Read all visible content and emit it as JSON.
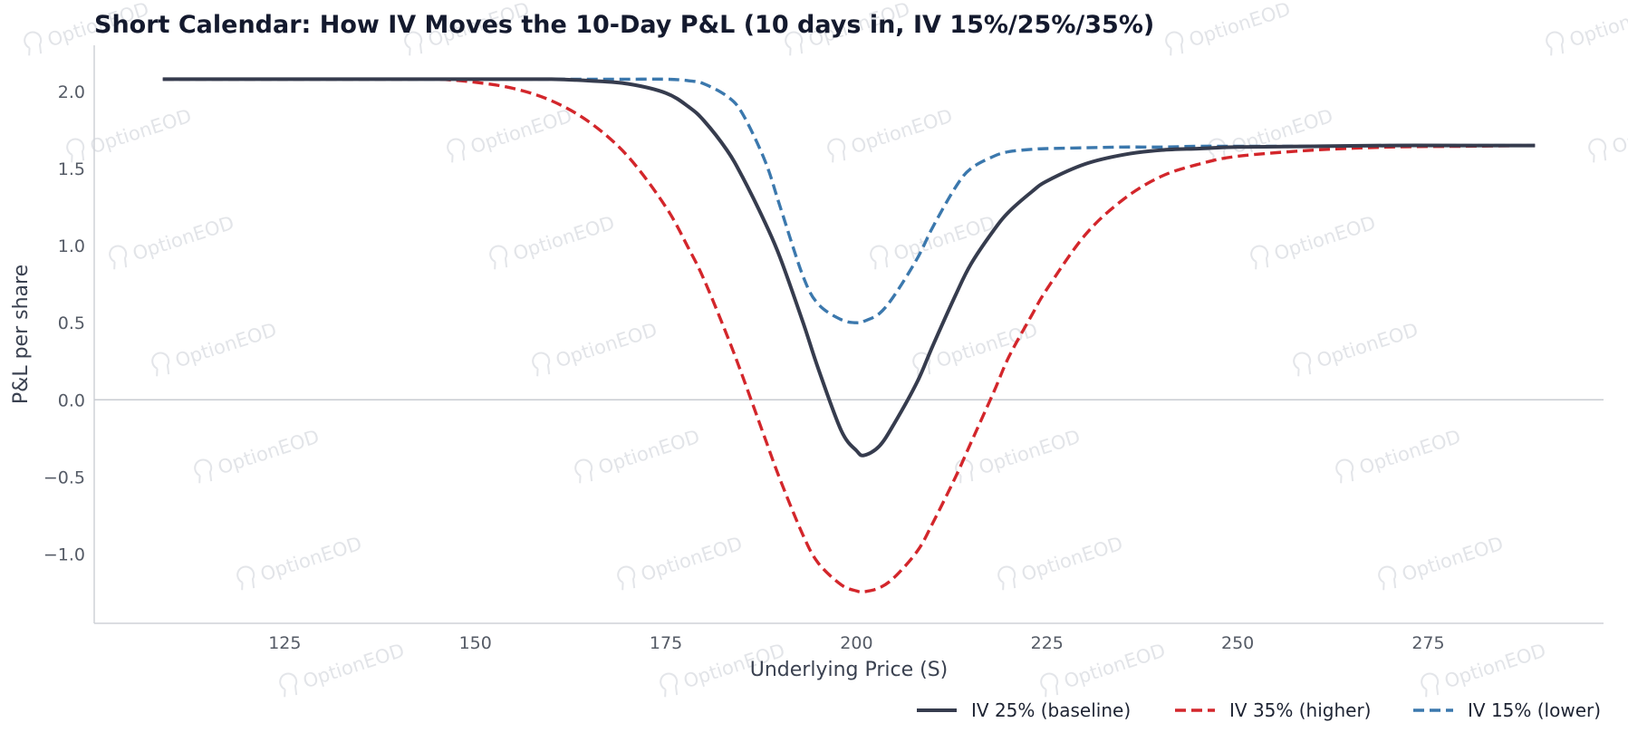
{
  "watermark": "OptionEOD",
  "colors": {
    "baseline": "#363c4e",
    "higher": "#d3262b",
    "lower": "#3b78ad",
    "axis": "#cfd2d7",
    "zero_line": "#c9ccd2"
  },
  "chart_data": {
    "type": "line",
    "title": "Short Calendar: How IV Moves the 10-Day P&L (10 days in, IV 15%/25%/35%)",
    "xlabel": "Underlying Price (S)",
    "ylabel": "P&L per share",
    "xlim": [
      100,
      298
    ],
    "ylim": [
      -1.45,
      2.3
    ],
    "xticks": [
      125,
      150,
      175,
      200,
      225,
      250,
      275
    ],
    "xtick_labels": [
      "125",
      "150",
      "175",
      "200",
      "225",
      "250",
      "275"
    ],
    "yticks": [
      -1.0,
      -0.5,
      0.0,
      0.5,
      1.0,
      1.5,
      2.0
    ],
    "ytick_labels": [
      "−1.0",
      "−0.5",
      "0.0",
      "0.5",
      "1.0",
      "1.5",
      "2.0"
    ],
    "grid": false,
    "zero_line": true,
    "legend_position": "bottom-right",
    "x": [
      109,
      120,
      130,
      140,
      145,
      150,
      155,
      160,
      165,
      170,
      175,
      178,
      180,
      183,
      185,
      188,
      190,
      193,
      195,
      198,
      200,
      201,
      203,
      205,
      208,
      210,
      213,
      215,
      218,
      220,
      223,
      225,
      230,
      235,
      240,
      245,
      250,
      260,
      270,
      280,
      289
    ],
    "series": [
      {
        "name": "IV 25% (baseline)",
        "style": "solid",
        "values": [
          2.08,
          2.08,
          2.08,
          2.08,
          2.08,
          2.08,
          2.08,
          2.08,
          2.07,
          2.05,
          1.99,
          1.9,
          1.81,
          1.62,
          1.45,
          1.15,
          0.92,
          0.5,
          0.2,
          -0.2,
          -0.33,
          -0.36,
          -0.3,
          -0.15,
          0.12,
          0.35,
          0.68,
          0.88,
          1.1,
          1.22,
          1.35,
          1.42,
          1.53,
          1.59,
          1.62,
          1.63,
          1.64,
          1.645,
          1.65,
          1.65,
          1.65
        ]
      },
      {
        "name": "IV 35% (higher)",
        "style": "dashed",
        "values": [
          2.08,
          2.08,
          2.08,
          2.08,
          2.08,
          2.06,
          2.02,
          1.94,
          1.8,
          1.58,
          1.25,
          0.98,
          0.78,
          0.42,
          0.16,
          -0.25,
          -0.52,
          -0.88,
          -1.06,
          -1.2,
          -1.24,
          -1.245,
          -1.22,
          -1.15,
          -0.98,
          -0.8,
          -0.5,
          -0.28,
          0.05,
          0.28,
          0.55,
          0.72,
          1.07,
          1.3,
          1.45,
          1.53,
          1.58,
          1.62,
          1.64,
          1.645,
          1.65
        ]
      },
      {
        "name": "IV 15% (lower)",
        "style": "dashed",
        "values": [
          2.08,
          2.08,
          2.08,
          2.08,
          2.08,
          2.08,
          2.08,
          2.08,
          2.08,
          2.08,
          2.08,
          2.07,
          2.05,
          1.97,
          1.86,
          1.55,
          1.25,
          0.8,
          0.62,
          0.52,
          0.5,
          0.51,
          0.56,
          0.68,
          0.92,
          1.12,
          1.38,
          1.5,
          1.58,
          1.61,
          1.625,
          1.63,
          1.635,
          1.64,
          1.64,
          1.645,
          1.645,
          1.645,
          1.65,
          1.65,
          1.65
        ]
      }
    ]
  }
}
